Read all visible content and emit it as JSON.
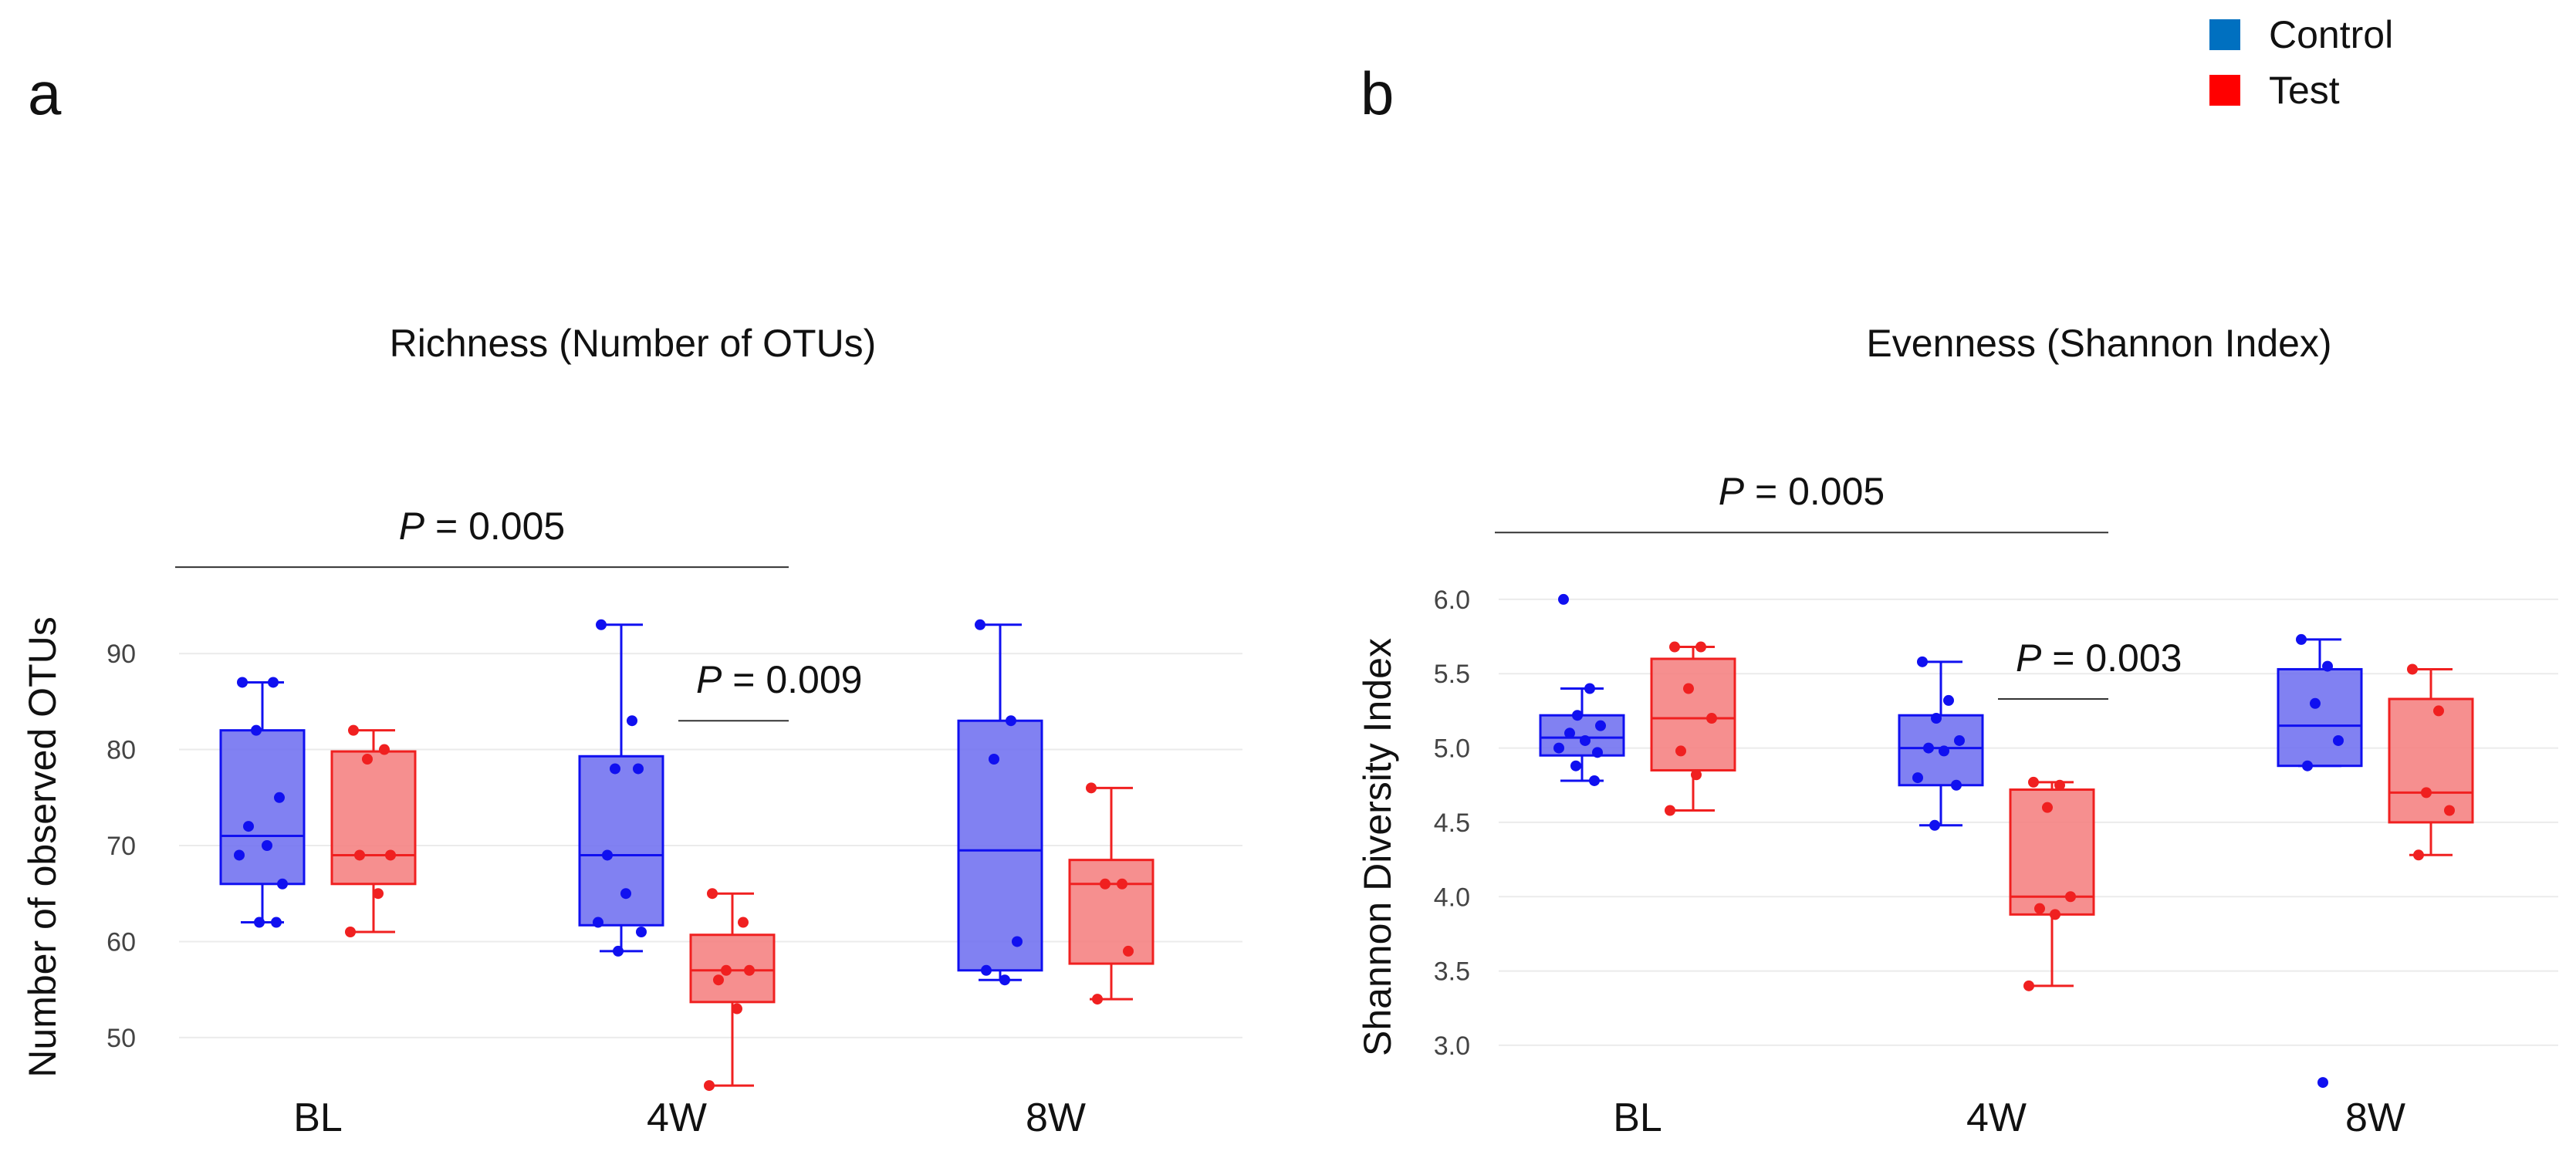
{
  "legend": {
    "entries": [
      {
        "label": "Control",
        "color": "#0070C0"
      },
      {
        "label": "Test",
        "color": "#FF0000"
      }
    ]
  },
  "chart_data": [
    {
      "type": "box",
      "panel_label": "a",
      "title": "Richness (Number of OTUs)",
      "ylabel": "Number of observed OTUs",
      "xlabel": "",
      "categories": [
        "BL",
        "4W",
        "8W"
      ],
      "ylim": [
        43,
        97
      ],
      "yticks": [
        50,
        60,
        70,
        80,
        90
      ],
      "grid": true,
      "series": [
        {
          "name": "Control",
          "stroke": "#1010F0",
          "fill": "#7070F0",
          "boxes": [
            {
              "min": 62,
              "q1": 66,
              "median": 71,
              "q3": 82,
              "max": 87,
              "points": [
                87,
                87,
                82,
                75,
                72,
                70,
                69,
                66,
                62,
                62
              ]
            },
            {
              "min": 59,
              "q1": 61.7,
              "median": 69,
              "q3": 79.3,
              "max": 93,
              "points": [
                93,
                83,
                78,
                78,
                69,
                65,
                62,
                61,
                59
              ]
            },
            {
              "min": 56,
              "q1": 57,
              "median": 69.5,
              "q3": 83,
              "max": 93,
              "points": [
                93,
                83,
                79,
                60,
                57,
                56
              ]
            }
          ]
        },
        {
          "name": "Test",
          "stroke": "#F02020",
          "fill": "#F58080",
          "boxes": [
            {
              "min": 61,
              "q1": 66,
              "median": 69,
              "q3": 79.8,
              "max": 82,
              "points": [
                82,
                80,
                79,
                69,
                69,
                65,
                61
              ]
            },
            {
              "min": 45,
              "q1": 53.7,
              "median": 57,
              "q3": 60.7,
              "max": 65,
              "points": [
                65,
                62,
                57,
                57,
                56,
                53,
                45
              ]
            },
            {
              "min": 54,
              "q1": 57.7,
              "median": 66,
              "q3": 68.5,
              "max": 76,
              "points": [
                76,
                66,
                66,
                59,
                54
              ]
            }
          ]
        }
      ],
      "annotations": [
        {
          "label_p": "P",
          "label_rest": " = 0.005",
          "from_category": "BL",
          "to_category": "4W",
          "y": 99
        },
        {
          "label_p": "P",
          "label_rest": " = 0.009",
          "from_category": "4W",
          "to_category": "4W",
          "y": 83
        }
      ]
    },
    {
      "type": "box",
      "panel_label": "b",
      "title": "Evenness (Shannon Index)",
      "ylabel": "Shannon Diversity Index",
      "xlabel": "",
      "categories": [
        "BL",
        "4W",
        "8W"
      ],
      "ylim": [
        2.6,
        6.15
      ],
      "yticks": [
        3.0,
        3.5,
        4.0,
        4.5,
        5.0,
        5.5,
        6.0
      ],
      "grid": true,
      "series": [
        {
          "name": "Control",
          "stroke": "#1010F0",
          "fill": "#7070F0",
          "boxes": [
            {
              "min": 4.78,
              "q1": 4.95,
              "median": 5.07,
              "q3": 5.22,
              "max": 5.4,
              "points": [
                6.0,
                5.4,
                5.22,
                5.15,
                5.1,
                5.05,
                5.0,
                4.97,
                4.88,
                4.78
              ]
            },
            {
              "min": 4.48,
              "q1": 4.75,
              "median": 5.0,
              "q3": 5.22,
              "max": 5.58,
              "points": [
                5.58,
                5.32,
                5.2,
                5.05,
                5.0,
                4.98,
                4.8,
                4.75,
                4.48
              ]
            },
            {
              "min": 4.88,
              "q1": 4.88,
              "median": 5.15,
              "q3": 5.53,
              "max": 5.73,
              "points": [
                5.73,
                5.55,
                5.3,
                5.05,
                4.88,
                2.75
              ]
            }
          ]
        },
        {
          "name": "Test",
          "stroke": "#F02020",
          "fill": "#F58080",
          "boxes": [
            {
              "min": 4.58,
              "q1": 4.85,
              "median": 5.2,
              "q3": 5.6,
              "max": 5.68,
              "points": [
                5.68,
                5.68,
                5.4,
                5.2,
                4.98,
                4.82,
                4.58
              ]
            },
            {
              "min": 3.4,
              "q1": 3.88,
              "median": 4.0,
              "q3": 4.72,
              "max": 4.77,
              "points": [
                4.77,
                4.75,
                4.6,
                4.0,
                3.92,
                3.88,
                3.4
              ]
            },
            {
              "min": 4.28,
              "q1": 4.5,
              "median": 4.7,
              "q3": 5.33,
              "max": 5.53,
              "points": [
                5.53,
                5.25,
                4.7,
                4.58,
                4.28
              ]
            }
          ]
        }
      ],
      "annotations": [
        {
          "label_p": "P",
          "label_rest": " = 0.005",
          "from_category": "BL",
          "to_category": "4W",
          "y": 6.45
        },
        {
          "label_p": "P",
          "label_rest": " = 0.003",
          "from_category": "4W",
          "to_category": "4W",
          "y": 5.33
        }
      ]
    }
  ]
}
